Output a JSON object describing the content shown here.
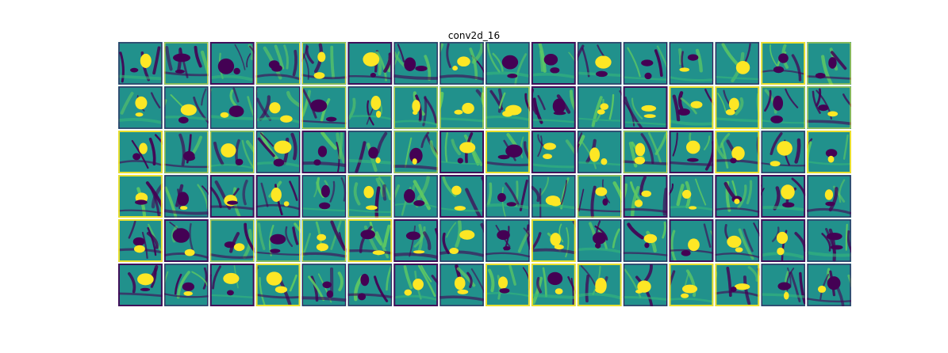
{
  "chart_data": {
    "type": "heatmap",
    "title": "conv2d_16",
    "layer": "conv2d_16",
    "grid": {
      "rows": 6,
      "cols": 16
    },
    "n_maps": 96,
    "colormap": "viridis",
    "colors": {
      "low": "#440154",
      "mid": "#21918c",
      "high": "#fde725",
      "background": "#ffffff"
    },
    "axes_visible": false,
    "xlabel": "",
    "ylabel": "",
    "tick_labels": []
  }
}
